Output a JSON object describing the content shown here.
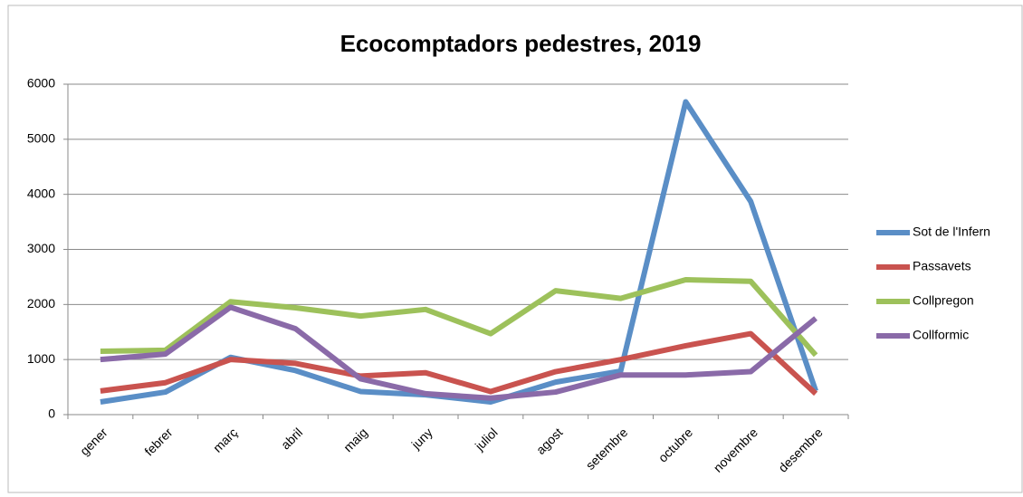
{
  "chart_data": {
    "type": "line",
    "title": "Ecocomptadors pedestres, 2019",
    "categories": [
      "gener",
      "febrer",
      "març",
      "abril",
      "maig",
      "juny",
      "juliol",
      "agost",
      "setembre",
      "octubre",
      "novembre",
      "desembre"
    ],
    "series": [
      {
        "name": "Sot de l'Infern",
        "color": "#5a8ec6",
        "values": [
          230,
          410,
          1040,
          800,
          420,
          360,
          230,
          590,
          790,
          5680,
          3870,
          430
        ]
      },
      {
        "name": "Passavets",
        "color": "#c9534f",
        "values": [
          430,
          580,
          1000,
          930,
          700,
          760,
          420,
          780,
          1000,
          1250,
          1470,
          380
        ]
      },
      {
        "name": "Collpregon",
        "color": "#9dc15b",
        "values": [
          1150,
          1170,
          2050,
          1940,
          1790,
          1910,
          1470,
          2250,
          2110,
          2450,
          2420,
          1080
        ]
      },
      {
        "name": "Collformic",
        "color": "#8a6aa8",
        "values": [
          1000,
          1100,
          1950,
          1560,
          650,
          380,
          300,
          410,
          720,
          720,
          780,
          1750
        ]
      }
    ],
    "ylim": [
      0,
      6000
    ],
    "yticks": [
      0,
      1000,
      2000,
      3000,
      4000,
      5000,
      6000
    ],
    "grid": true,
    "legend": "right"
  }
}
